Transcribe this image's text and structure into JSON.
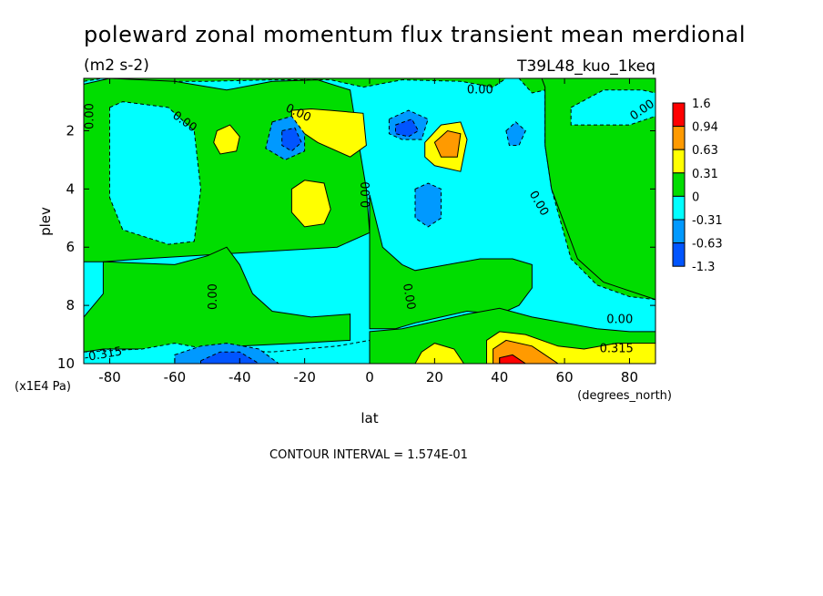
{
  "chart_data": {
    "type": "heatmap",
    "title": "poleward zonal momentum flux transient mean merdional",
    "units": "(m2 s-2)",
    "experiment": "T39L48_kuo_1keq",
    "xlabel": "lat",
    "x_units": "(degrees_north)",
    "ylabel": "plev",
    "y_units": "(x1E4 Pa)",
    "xlim": [
      -88,
      88
    ],
    "ylim": [
      10,
      0.2
    ],
    "x_ticks": [
      "-80",
      "-60",
      "-40",
      "-20",
      "0",
      "20",
      "40",
      "60",
      "80"
    ],
    "x_tick_values": [
      -80,
      -60,
      -40,
      -20,
      0,
      20,
      40,
      60,
      80
    ],
    "y_ticks": [
      "2",
      "4",
      "6",
      "8",
      "10"
    ],
    "y_tick_values": [
      2,
      4,
      6,
      8,
      10
    ],
    "colorbar": {
      "labels": [
        "1.6",
        "0.94",
        "0.63",
        "0.31",
        "0",
        "-0.31",
        "-0.63",
        "-1.3"
      ],
      "colors": [
        "#ff0000",
        "#ff9a00",
        "#ffff00",
        "#00dd00",
        "#00ffff",
        "#0099ff",
        "#0055ff"
      ]
    },
    "contour_labels": [
      {
        "text": "0.00",
        "lon": -86,
        "p": 1.5,
        "rot": -90
      },
      {
        "text": "0.00",
        "lon": -57,
        "p": 1.7,
        "rot": 35
      },
      {
        "text": "0.00",
        "lon": -22,
        "p": 1.4,
        "rot": 25
      },
      {
        "text": "0.00",
        "lon": 34,
        "p": 0.6,
        "rot": 0
      },
      {
        "text": "0.00",
        "lon": -1,
        "p": 4.2,
        "rot": -90
      },
      {
        "text": "0.00",
        "lon": 52,
        "p": 4.5,
        "rot": 60
      },
      {
        "text": "0.00",
        "lon": 84,
        "p": 1.3,
        "rot": -35
      },
      {
        "text": "0.00",
        "lon": -48,
        "p": 7.7,
        "rot": -90
      },
      {
        "text": "0.00",
        "lon": 12,
        "p": 7.7,
        "rot": 80
      },
      {
        "text": "0.00",
        "lon": 77,
        "p": 8.5,
        "rot": 0
      },
      {
        "text": "-0.315",
        "lon": -82,
        "p": 9.7,
        "rot": -10
      },
      {
        "text": "0.315",
        "lon": 76,
        "p": 9.5,
        "rot": 0
      }
    ],
    "footnote": "CONTOUR INTERVAL = 1.574E-01"
  }
}
